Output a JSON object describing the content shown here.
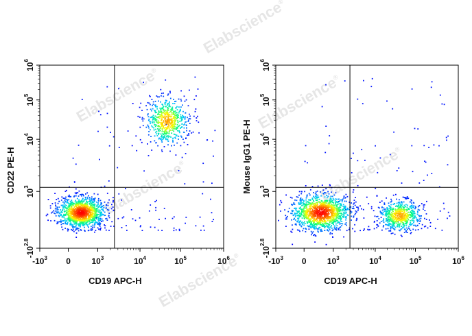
{
  "watermark": {
    "text": "Elabscience",
    "mark": "®"
  },
  "chart_data": [
    {
      "type": "scatter",
      "plot_kind": "flow cytometry density dot plot",
      "xlabel": "CD19 APC-H",
      "ylabel": "CD22 PE-H",
      "x_ticks": [
        {
          "base": "-10",
          "exp": "3"
        },
        {
          "base": "0",
          "exp": ""
        },
        {
          "base": "10",
          "exp": "3"
        },
        {
          "base": "10",
          "exp": "4"
        },
        {
          "base": "10",
          "exp": "5"
        },
        {
          "base": "10",
          "exp": "6"
        }
      ],
      "y_ticks": [
        {
          "base": "-10",
          "exp": "2.8"
        },
        {
          "base": "10",
          "exp": "3"
        },
        {
          "base": "10",
          "exp": "4"
        },
        {
          "base": "10",
          "exp": "5"
        },
        {
          "base": "10",
          "exp": "6"
        }
      ],
      "scale": "biexponential",
      "xlim": [
        -1000,
        1000000
      ],
      "ylim": [
        -631,
        1000000
      ],
      "quadrant_gate": {
        "x": 2500,
        "y": 1200
      },
      "populations": [
        {
          "label": "CD19- CD22-",
          "x_center": 200,
          "y_center": 150,
          "relative_count": 0.68
        },
        {
          "label": "CD19+ CD22+",
          "x_center": 45000,
          "y_center": 30000,
          "relative_count": 0.32
        }
      ],
      "colormap": [
        "#0000ff",
        "#00c8ff",
        "#00ff80",
        "#ffff00",
        "#ff8000",
        "#ff0000"
      ]
    },
    {
      "type": "scatter",
      "plot_kind": "flow cytometry density dot plot",
      "xlabel": "CD19 APC-H",
      "ylabel": "Mouse IgG1 PE-H",
      "x_ticks": [
        {
          "base": "-10",
          "exp": "3"
        },
        {
          "base": "0",
          "exp": ""
        },
        {
          "base": "10",
          "exp": "3"
        },
        {
          "base": "10",
          "exp": "4"
        },
        {
          "base": "10",
          "exp": "5"
        },
        {
          "base": "10",
          "exp": "6"
        }
      ],
      "y_ticks": [
        {
          "base": "-10",
          "exp": "2.8"
        },
        {
          "base": "10",
          "exp": "3"
        },
        {
          "base": "10",
          "exp": "4"
        },
        {
          "base": "10",
          "exp": "5"
        },
        {
          "base": "10",
          "exp": "6"
        }
      ],
      "scale": "biexponential",
      "xlim": [
        -1000,
        1000000
      ],
      "ylim": [
        -631,
        1000000
      ],
      "quadrant_gate": {
        "x": 2500,
        "y": 1200
      },
      "populations": [
        {
          "label": "CD19- IgG1-",
          "x_center": 300,
          "y_center": 150,
          "relative_count": 0.68
        },
        {
          "label": "CD19+ IgG1-",
          "x_center": 40000,
          "y_center": 100,
          "relative_count": 0.32
        }
      ],
      "colormap": [
        "#0000ff",
        "#00c8ff",
        "#00ff80",
        "#ffff00",
        "#ff8000",
        "#ff0000"
      ]
    }
  ]
}
